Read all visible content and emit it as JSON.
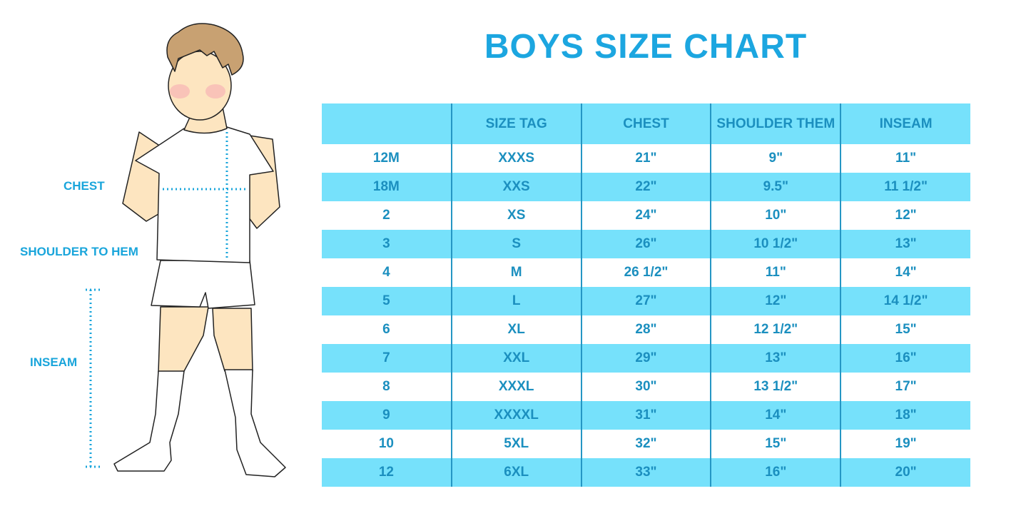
{
  "title": "BOYS SIZE CHART",
  "figure_labels": {
    "chest": "CHEST",
    "shoulder_to_hem": "SHOULDER TO HEM",
    "inseam": "INSEAM"
  },
  "colors": {
    "title": "#1ca6e0",
    "row_highlight": "#76e1fb",
    "table_text": "#1b8fbf",
    "measure_lines": "#19a5db"
  },
  "table": {
    "headers": [
      "",
      "SIZE TAG",
      "CHEST",
      "SHOULDER THEM",
      "INSEAM"
    ],
    "rows": [
      [
        "12M",
        "XXXS",
        "21\"",
        "9\"",
        "11\""
      ],
      [
        "18M",
        "XXS",
        "22\"",
        "9.5\"",
        "11 1/2\""
      ],
      [
        "2",
        "XS",
        "24\"",
        "10\"",
        "12\""
      ],
      [
        "3",
        "S",
        "26\"",
        "10 1/2\"",
        "13\""
      ],
      [
        "4",
        "M",
        "26 1/2\"",
        "11\"",
        "14\""
      ],
      [
        "5",
        "L",
        "27\"",
        "12\"",
        "14 1/2\""
      ],
      [
        "6",
        "XL",
        "28\"",
        "12 1/2\"",
        "15\""
      ],
      [
        "7",
        "XXL",
        "29\"",
        "13\"",
        "16\""
      ],
      [
        "8",
        "XXXL",
        "30\"",
        "13 1/2\"",
        "17\""
      ],
      [
        "9",
        "XXXXL",
        "31\"",
        "14\"",
        "18\""
      ],
      [
        "10",
        "5XL",
        "32\"",
        "15\"",
        "19\""
      ],
      [
        "12",
        "6XL",
        "33\"",
        "16\"",
        "20\""
      ]
    ]
  }
}
